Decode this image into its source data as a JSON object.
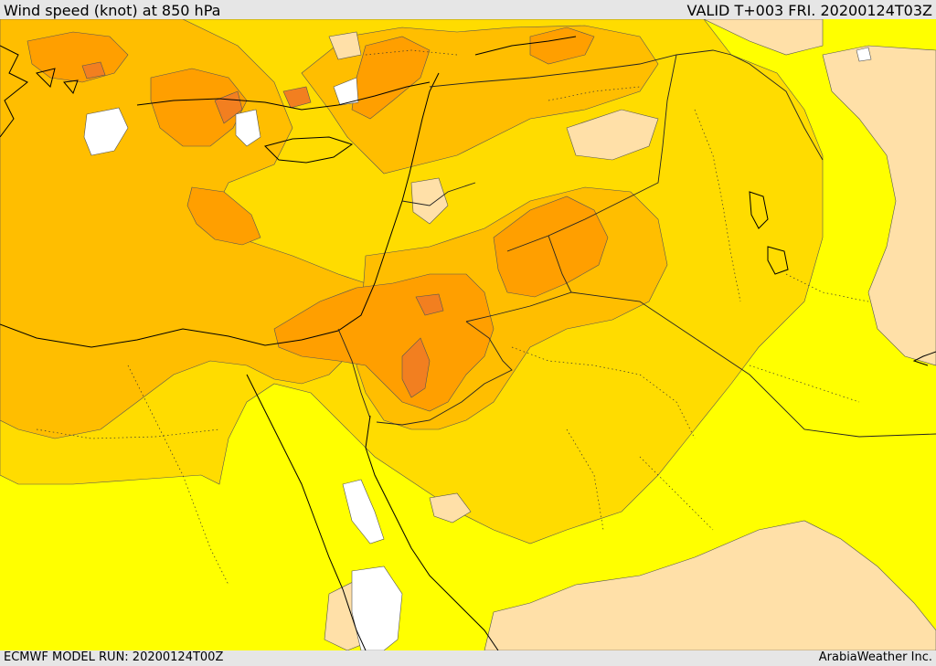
{
  "header": {
    "title": "Wind speed (knot) at 850 hPa",
    "valid": "VALID T+003 FRI. 20200124T03Z"
  },
  "footer": {
    "model_run": "ECMWF MODEL RUN: 20200124T00Z",
    "credit": "ArabiaWeather Inc."
  },
  "colors": {
    "calm": "#ffffff",
    "light": "#ffe0a8",
    "moderate_low": "#ffff00",
    "moderate": "#ffdc00",
    "fresh": "#ffbe00",
    "strong": "#ff9f00",
    "very_strong": "#f27f20",
    "gale": "#e06030",
    "land_border": "#000000"
  }
}
